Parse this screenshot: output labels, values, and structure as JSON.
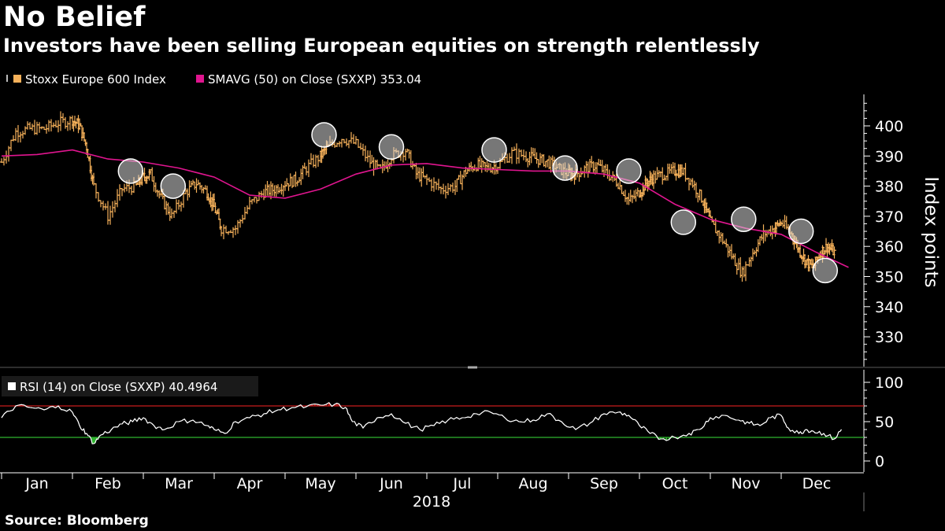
{
  "title": "No Belief",
  "subtitle": "Investors have been selling European equities on strength relentlessly",
  "source": "Source: Bloomberg",
  "colors": {
    "background": "#000000",
    "price": "#f6b15a",
    "sma": "#e0158f",
    "rsi": "#ffffff",
    "overbought": "#c81e1e",
    "oversold": "#2fb52f",
    "highlight": "#d9d9d9",
    "axis": "#ffffff"
  },
  "chart_data": [
    {
      "type": "line",
      "panel": "main",
      "legend_position": "top-left",
      "grid": false,
      "ylabel": "Index points",
      "ylim": [
        320,
        410
      ],
      "yticks": [
        "400",
        "390",
        "380",
        "370",
        "360",
        "350",
        "340",
        "330"
      ],
      "x_axis": {
        "months": [
          "Jan",
          "Feb",
          "Mar",
          "Apr",
          "May",
          "Jun",
          "Jul",
          "Aug",
          "Sep",
          "Oct",
          "Nov",
          "Dec"
        ],
        "year": "2018"
      },
      "series": [
        {
          "name": "Stoxx Europe 600 Index",
          "style": "ohlc-bars",
          "legend_icon": "bar-chart-icon",
          "x": [
            0.0,
            0.2,
            0.4,
            0.6,
            0.8,
            1.0,
            1.1,
            1.2,
            1.3,
            1.5,
            1.7,
            1.9,
            2.0,
            2.1,
            2.25,
            2.4,
            2.6,
            2.75,
            2.9,
            3.0,
            3.1,
            3.3,
            3.5,
            3.7,
            3.85,
            4.0,
            4.15,
            4.3,
            4.5,
            4.6,
            4.8,
            5.0,
            5.2,
            5.35,
            5.5,
            5.7,
            5.85,
            6.0,
            6.2,
            6.4,
            6.55,
            6.7,
            6.85,
            7.0,
            7.2,
            7.4,
            7.55,
            7.7,
            7.85,
            8.0,
            8.1,
            8.25,
            8.4,
            8.55,
            8.7,
            8.85,
            9.0,
            9.1,
            9.2,
            9.35,
            9.5,
            9.6,
            9.75,
            9.9,
            10.0,
            10.15,
            10.3,
            10.45,
            10.6,
            10.75,
            10.9,
            11.0,
            11.15,
            11.25,
            11.35,
            11.45,
            11.55,
            11.65,
            11.75
          ],
          "values": [
            388,
            398,
            399,
            399,
            401,
            402,
            400,
            393,
            380,
            370,
            379,
            380,
            383,
            384,
            376,
            370,
            378,
            381,
            378,
            373,
            366,
            366,
            374,
            378,
            379,
            381,
            382,
            386,
            390,
            393,
            396,
            394,
            388,
            385,
            390,
            392,
            384,
            382,
            379,
            380,
            385,
            387,
            386,
            387,
            391,
            390,
            389,
            388,
            386,
            384,
            384,
            386,
            387,
            384,
            381,
            375,
            378,
            381,
            383,
            384,
            385,
            385,
            381,
            375,
            368,
            363,
            357,
            351,
            358,
            364,
            366,
            368,
            364,
            359,
            355,
            353,
            358,
            360,
            358
          ]
        },
        {
          "name": "SMAVG (50)  on Close (SXXP)",
          "style": "line",
          "last_value": "353.04",
          "x": [
            0.0,
            0.5,
            1.0,
            1.5,
            2.0,
            2.5,
            3.0,
            3.5,
            4.0,
            4.5,
            5.0,
            5.5,
            6.0,
            6.5,
            7.0,
            7.5,
            8.0,
            8.5,
            9.0,
            9.5,
            10.0,
            10.5,
            11.0,
            11.5,
            11.95
          ],
          "values": [
            390,
            390.5,
            392,
            389,
            388,
            386,
            383,
            377,
            376,
            379,
            384,
            387,
            387.5,
            386,
            385.5,
            385,
            385,
            384,
            381,
            374,
            369,
            366,
            364,
            358,
            353.04
          ]
        }
      ],
      "annotations": {
        "style": "circle",
        "x": [
          1.82,
          2.42,
          4.55,
          5.5,
          6.95,
          7.95,
          8.85,
          9.62,
          10.47,
          11.28,
          11.62
        ],
        "y": [
          385,
          380,
          397,
          393,
          392,
          386,
          385,
          368,
          369,
          365,
          352
        ]
      }
    },
    {
      "type": "line",
      "panel": "indicator",
      "legend_position": "top-left",
      "grid": false,
      "ylim": [
        -5,
        112
      ],
      "yticks": [
        "100",
        "50",
        "0"
      ],
      "reference_lines": [
        70,
        30
      ],
      "series": [
        {
          "name": "RSI (14)  on Close (SXXP)",
          "legend_icon": "square-icon",
          "last_value": "40.4964",
          "x": [
            0.0,
            0.2,
            0.4,
            0.6,
            0.8,
            1.0,
            1.1,
            1.2,
            1.3,
            1.4,
            1.55,
            1.7,
            1.85,
            2.0,
            2.15,
            2.3,
            2.5,
            2.7,
            2.9,
            3.0,
            3.15,
            3.3,
            3.5,
            3.7,
            3.9,
            4.1,
            4.3,
            4.5,
            4.7,
            4.85,
            4.95,
            5.1,
            5.3,
            5.5,
            5.7,
            5.9,
            6.1,
            6.3,
            6.5,
            6.7,
            6.9,
            7.1,
            7.3,
            7.5,
            7.7,
            7.9,
            8.1,
            8.3,
            8.5,
            8.7,
            8.85,
            9.0,
            9.15,
            9.3,
            9.5,
            9.7,
            9.85,
            10.0,
            10.2,
            10.4,
            10.55,
            10.7,
            10.85,
            11.0,
            11.1,
            11.25,
            11.35,
            11.45,
            11.6,
            11.75,
            11.85
          ],
          "values": [
            55,
            70,
            68,
            65,
            70,
            62,
            45,
            35,
            22,
            33,
            40,
            47,
            50,
            55,
            45,
            40,
            50,
            52,
            45,
            40,
            35,
            50,
            55,
            60,
            65,
            68,
            69,
            71,
            72,
            68,
            50,
            42,
            55,
            60,
            48,
            40,
            45,
            52,
            55,
            60,
            62,
            55,
            50,
            52,
            60,
            50,
            40,
            48,
            60,
            62,
            58,
            45,
            35,
            28,
            30,
            35,
            40,
            55,
            58,
            52,
            48,
            45,
            55,
            58,
            42,
            35,
            40,
            38,
            35,
            28,
            40
          ]
        }
      ]
    }
  ]
}
